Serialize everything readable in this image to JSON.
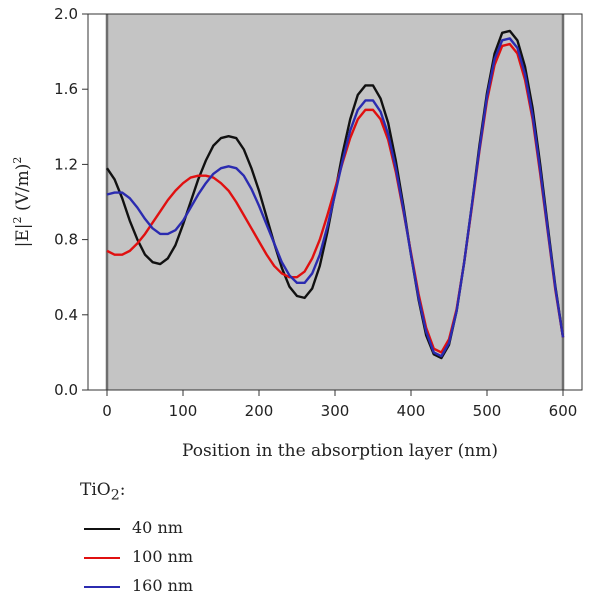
{
  "chart_data": {
    "type": "line",
    "xlabel": "Position in the absorption layer (nm)",
    "ylabel_main": "|E|",
    "ylabel_sup1": "2",
    "ylabel_unit": " (V/m)",
    "ylabel_sup2": "2",
    "xlim": [
      -25,
      625
    ],
    "ylim": [
      0.0,
      2.0
    ],
    "xticks": [
      0,
      100,
      200,
      300,
      400,
      500,
      600
    ],
    "yticks": [
      "0.0",
      "0.4",
      "0.8",
      "1.2",
      "1.6",
      "2.0"
    ],
    "shaded_region": [
      0,
      600
    ],
    "shaded_color": "#c4c4c4",
    "legend_title_main": "TiO",
    "legend_title_sub": "2",
    "legend_title_suffix": ":",
    "series": [
      {
        "name": "40 nm",
        "color": "#111111",
        "points": [
          [
            0,
            1.18
          ],
          [
            10,
            1.12
          ],
          [
            20,
            1.02
          ],
          [
            30,
            0.9
          ],
          [
            40,
            0.8
          ],
          [
            50,
            0.72
          ],
          [
            60,
            0.68
          ],
          [
            70,
            0.67
          ],
          [
            80,
            0.7
          ],
          [
            90,
            0.77
          ],
          [
            100,
            0.88
          ],
          [
            110,
            1.0
          ],
          [
            120,
            1.12
          ],
          [
            130,
            1.22
          ],
          [
            140,
            1.3
          ],
          [
            150,
            1.34
          ],
          [
            160,
            1.35
          ],
          [
            170,
            1.34
          ],
          [
            180,
            1.28
          ],
          [
            190,
            1.18
          ],
          [
            200,
            1.06
          ],
          [
            210,
            0.92
          ],
          [
            220,
            0.78
          ],
          [
            230,
            0.65
          ],
          [
            240,
            0.55
          ],
          [
            250,
            0.5
          ],
          [
            260,
            0.49
          ],
          [
            270,
            0.54
          ],
          [
            280,
            0.66
          ],
          [
            290,
            0.84
          ],
          [
            300,
            1.05
          ],
          [
            310,
            1.26
          ],
          [
            320,
            1.44
          ],
          [
            330,
            1.57
          ],
          [
            340,
            1.62
          ],
          [
            350,
            1.62
          ],
          [
            360,
            1.55
          ],
          [
            370,
            1.42
          ],
          [
            380,
            1.22
          ],
          [
            390,
            0.98
          ],
          [
            400,
            0.72
          ],
          [
            410,
            0.48
          ],
          [
            420,
            0.29
          ],
          [
            430,
            0.19
          ],
          [
            440,
            0.17
          ],
          [
            450,
            0.24
          ],
          [
            460,
            0.42
          ],
          [
            470,
            0.68
          ],
          [
            480,
            0.98
          ],
          [
            490,
            1.3
          ],
          [
            500,
            1.58
          ],
          [
            510,
            1.79
          ],
          [
            520,
            1.9
          ],
          [
            530,
            1.91
          ],
          [
            540,
            1.86
          ],
          [
            550,
            1.72
          ],
          [
            560,
            1.5
          ],
          [
            570,
            1.2
          ],
          [
            580,
            0.87
          ],
          [
            590,
            0.55
          ],
          [
            600,
            0.28
          ]
        ]
      },
      {
        "name": "100 nm",
        "color": "#e01010",
        "points": [
          [
            0,
            0.74
          ],
          [
            10,
            0.72
          ],
          [
            20,
            0.72
          ],
          [
            30,
            0.74
          ],
          [
            40,
            0.78
          ],
          [
            50,
            0.83
          ],
          [
            60,
            0.89
          ],
          [
            70,
            0.95
          ],
          [
            80,
            1.01
          ],
          [
            90,
            1.06
          ],
          [
            100,
            1.1
          ],
          [
            110,
            1.13
          ],
          [
            120,
            1.14
          ],
          [
            130,
            1.14
          ],
          [
            140,
            1.13
          ],
          [
            150,
            1.1
          ],
          [
            160,
            1.06
          ],
          [
            170,
            1.0
          ],
          [
            180,
            0.93
          ],
          [
            190,
            0.86
          ],
          [
            200,
            0.79
          ],
          [
            210,
            0.72
          ],
          [
            220,
            0.66
          ],
          [
            230,
            0.62
          ],
          [
            240,
            0.6
          ],
          [
            250,
            0.6
          ],
          [
            260,
            0.63
          ],
          [
            270,
            0.7
          ],
          [
            280,
            0.8
          ],
          [
            290,
            0.93
          ],
          [
            300,
            1.07
          ],
          [
            310,
            1.21
          ],
          [
            320,
            1.34
          ],
          [
            330,
            1.44
          ],
          [
            340,
            1.49
          ],
          [
            350,
            1.49
          ],
          [
            360,
            1.44
          ],
          [
            370,
            1.33
          ],
          [
            380,
            1.16
          ],
          [
            390,
            0.95
          ],
          [
            400,
            0.73
          ],
          [
            410,
            0.51
          ],
          [
            420,
            0.33
          ],
          [
            430,
            0.22
          ],
          [
            440,
            0.2
          ],
          [
            450,
            0.27
          ],
          [
            460,
            0.43
          ],
          [
            470,
            0.68
          ],
          [
            480,
            0.97
          ],
          [
            490,
            1.27
          ],
          [
            500,
            1.54
          ],
          [
            510,
            1.73
          ],
          [
            520,
            1.83
          ],
          [
            530,
            1.84
          ],
          [
            540,
            1.79
          ],
          [
            550,
            1.65
          ],
          [
            560,
            1.44
          ],
          [
            570,
            1.15
          ],
          [
            580,
            0.84
          ],
          [
            590,
            0.53
          ],
          [
            600,
            0.28
          ]
        ]
      },
      {
        "name": "160 nm",
        "color": "#2b2bb0",
        "points": [
          [
            0,
            1.04
          ],
          [
            10,
            1.05
          ],
          [
            20,
            1.05
          ],
          [
            30,
            1.02
          ],
          [
            40,
            0.97
          ],
          [
            50,
            0.91
          ],
          [
            60,
            0.86
          ],
          [
            70,
            0.83
          ],
          [
            80,
            0.83
          ],
          [
            90,
            0.85
          ],
          [
            100,
            0.9
          ],
          [
            110,
            0.97
          ],
          [
            120,
            1.04
          ],
          [
            130,
            1.1
          ],
          [
            140,
            1.15
          ],
          [
            150,
            1.18
          ],
          [
            160,
            1.19
          ],
          [
            170,
            1.18
          ],
          [
            180,
            1.14
          ],
          [
            190,
            1.07
          ],
          [
            200,
            0.98
          ],
          [
            210,
            0.88
          ],
          [
            220,
            0.78
          ],
          [
            230,
            0.68
          ],
          [
            240,
            0.61
          ],
          [
            250,
            0.57
          ],
          [
            260,
            0.57
          ],
          [
            270,
            0.62
          ],
          [
            280,
            0.72
          ],
          [
            290,
            0.87
          ],
          [
            300,
            1.04
          ],
          [
            310,
            1.22
          ],
          [
            320,
            1.38
          ],
          [
            330,
            1.49
          ],
          [
            340,
            1.54
          ],
          [
            350,
            1.54
          ],
          [
            360,
            1.48
          ],
          [
            370,
            1.36
          ],
          [
            380,
            1.18
          ],
          [
            390,
            0.96
          ],
          [
            400,
            0.72
          ],
          [
            410,
            0.49
          ],
          [
            420,
            0.31
          ],
          [
            430,
            0.2
          ],
          [
            440,
            0.18
          ],
          [
            450,
            0.25
          ],
          [
            460,
            0.42
          ],
          [
            470,
            0.68
          ],
          [
            480,
            0.98
          ],
          [
            490,
            1.28
          ],
          [
            500,
            1.56
          ],
          [
            510,
            1.76
          ],
          [
            520,
            1.86
          ],
          [
            530,
            1.87
          ],
          [
            540,
            1.82
          ],
          [
            550,
            1.68
          ],
          [
            560,
            1.46
          ],
          [
            570,
            1.17
          ],
          [
            580,
            0.85
          ],
          [
            590,
            0.54
          ],
          [
            600,
            0.28
          ]
        ]
      }
    ]
  }
}
